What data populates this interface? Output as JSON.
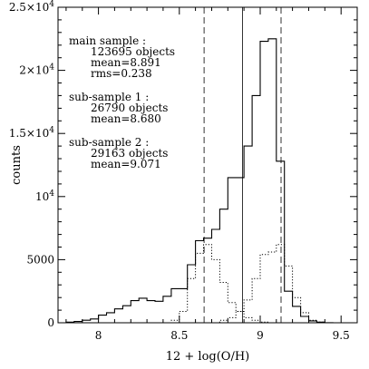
{
  "chart_data": {
    "type": "histogram",
    "xlabel": "12 + log(O/H)",
    "ylabel": "counts",
    "xlim": [
      7.75,
      9.6
    ],
    "ylim": [
      0,
      25000
    ],
    "x_ticks": [
      {
        "value": 8.0,
        "label": "8"
      },
      {
        "value": 8.5,
        "label": "8.5"
      },
      {
        "value": 9.0,
        "label": "9"
      },
      {
        "value": 9.5,
        "label": "9.5"
      }
    ],
    "y_ticks": [
      {
        "value": 0,
        "label": "0"
      },
      {
        "value": 5000,
        "label": "5000"
      },
      {
        "value": 10000,
        "label": "10⁴",
        "base": "10",
        "exp": "4"
      },
      {
        "value": 15000,
        "label": "1.5×10⁴",
        "base": "1.5×10",
        "exp": "4"
      },
      {
        "value": 20000,
        "label": "2×10⁴",
        "base": "2×10",
        "exp": "4"
      },
      {
        "value": 25000,
        "label": "2.5×10⁴",
        "base": "2.5×10",
        "exp": "4"
      }
    ],
    "bin_edges": [
      7.8,
      7.85,
      7.9,
      7.95,
      8.0,
      8.05,
      8.1,
      8.15,
      8.2,
      8.25,
      8.3,
      8.35,
      8.4,
      8.45,
      8.5,
      8.55,
      8.6,
      8.65,
      8.7,
      8.75,
      8.8,
      8.85,
      8.9,
      8.95,
      9.0,
      9.05,
      9.1,
      9.15,
      9.2,
      9.25,
      9.3,
      9.35,
      9.4,
      9.45,
      9.5
    ],
    "series": [
      {
        "name": "main sample",
        "style": "solid",
        "values": [
          50,
          100,
          200,
          300,
          600,
          800,
          1100,
          1350,
          1750,
          1950,
          1750,
          1700,
          2100,
          2700,
          2700,
          4600,
          6500,
          6700,
          7400,
          9000,
          11500,
          11500,
          14000,
          18000,
          22300,
          22500,
          12800,
          2500,
          1300,
          500,
          150,
          50,
          10,
          0
        ]
      },
      {
        "name": "sub-sample 1",
        "style": "dotted",
        "values": [
          0,
          0,
          0,
          0,
          0,
          0,
          0,
          0,
          0,
          0,
          0,
          0,
          0,
          200,
          900,
          3500,
          5500,
          6200,
          5000,
          3200,
          1600,
          900,
          400,
          200,
          50,
          0,
          0,
          0,
          0,
          0,
          0,
          0,
          0,
          0
        ]
      },
      {
        "name": "sub-sample 2",
        "style": "dotted",
        "values": [
          0,
          0,
          0,
          0,
          0,
          0,
          0,
          0,
          0,
          0,
          0,
          0,
          0,
          0,
          0,
          0,
          0,
          0,
          0,
          200,
          400,
          900,
          1800,
          3500,
          5400,
          5600,
          6200,
          4500,
          2000,
          800,
          200,
          50,
          0,
          0
        ]
      }
    ],
    "vlines": [
      {
        "x": 8.891,
        "style": "solid"
      },
      {
        "x": 8.653,
        "style": "dashed"
      },
      {
        "x": 9.129,
        "style": "dashed"
      }
    ],
    "annotations": [
      {
        "head": "main sample :",
        "lines": [
          "123695 objects",
          "mean=8.891",
          "rms=0.238"
        ]
      },
      {
        "head": "sub-sample 1 :",
        "lines": [
          "26790 objects",
          "mean=8.680"
        ]
      },
      {
        "head": "sub-sample 2 :",
        "lines": [
          "29163 objects",
          "mean=9.071"
        ]
      }
    ]
  }
}
